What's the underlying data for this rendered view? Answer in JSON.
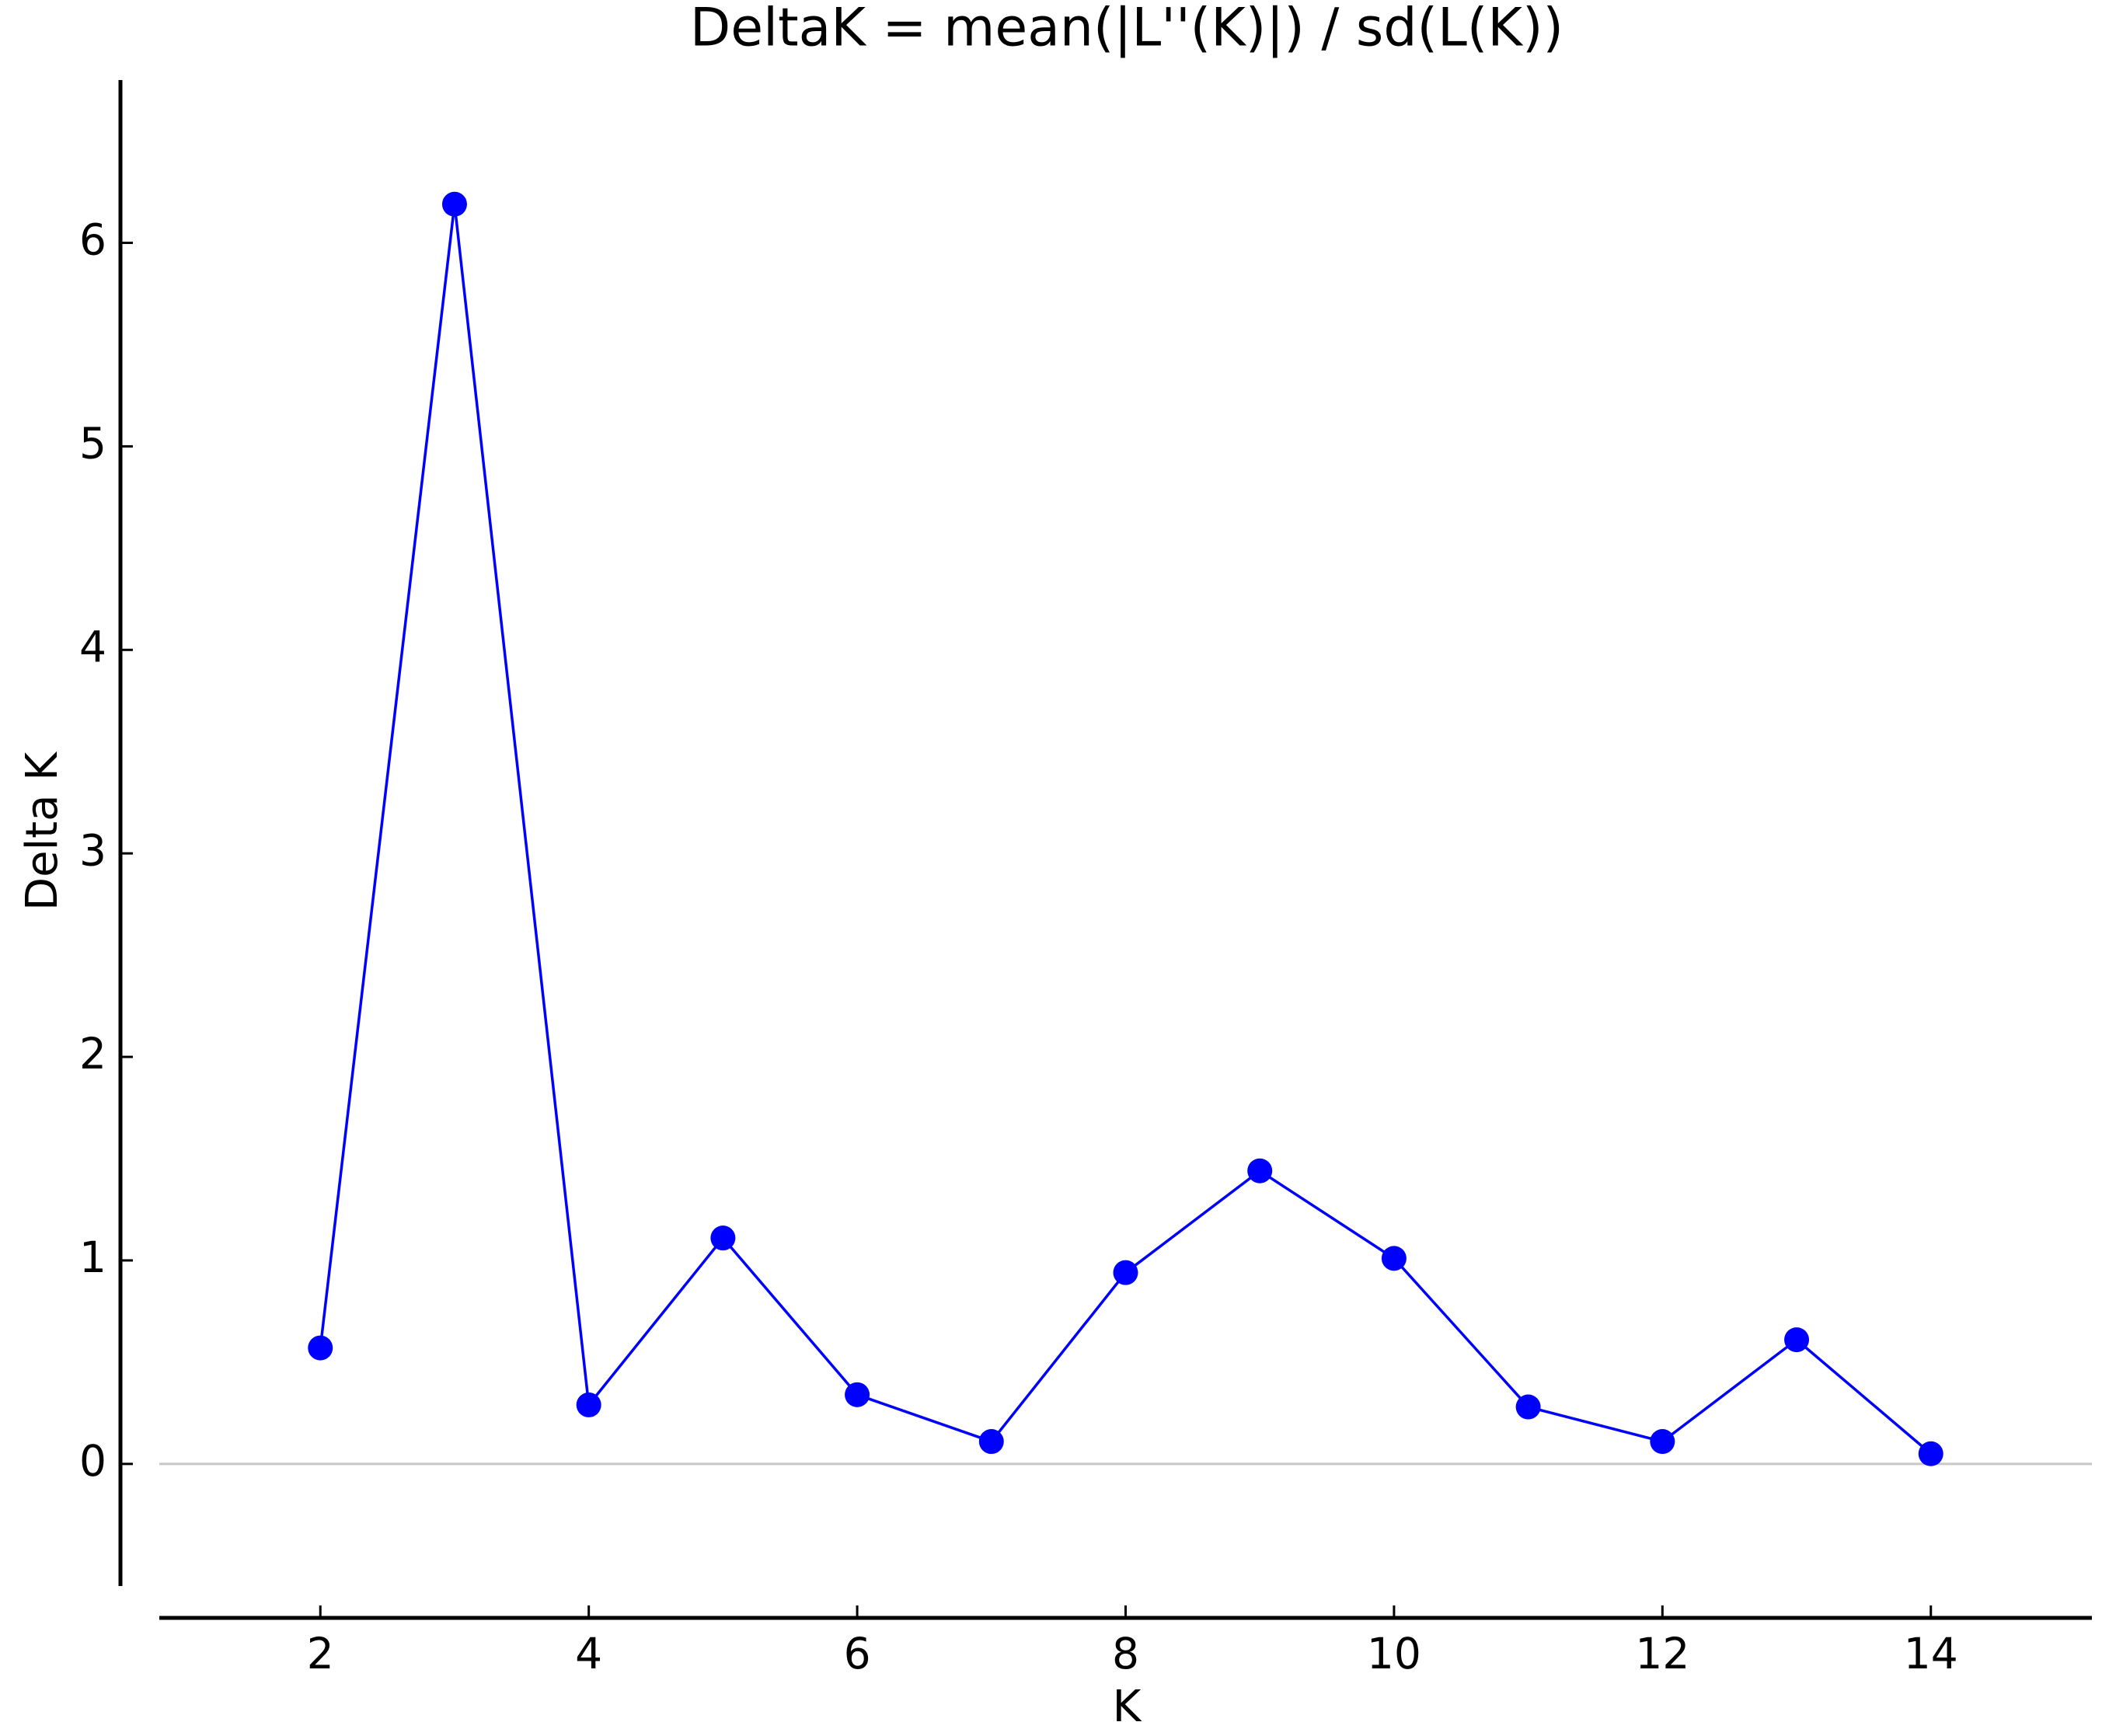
{
  "chart_data": {
    "type": "line",
    "title": "DeltaK = mean(|L''(K)|) / sd(L(K))",
    "x_label": "K",
    "y_label": "Delta K",
    "x": [
      2,
      3,
      4,
      5,
      6,
      7,
      8,
      9,
      10,
      11,
      12,
      13,
      14
    ],
    "series": [
      {
        "color": "#0000ff",
        "values": [
          0.57,
          6.19,
          0.29,
          1.11,
          0.34,
          0.11,
          0.94,
          1.44,
          1.01,
          0.28,
          0.11,
          0.61,
          0.05
        ]
      }
    ],
    "xlim": [
      0.8,
      15.2
    ],
    "ylim": [
      -0.6,
      6.8
    ],
    "xticks": [
      2,
      4,
      6,
      8,
      10,
      12,
      14
    ],
    "yticks": [
      0,
      1,
      2,
      3,
      4,
      5,
      6
    ],
    "hline": 0,
    "hline_color": "#c8c8c8"
  }
}
